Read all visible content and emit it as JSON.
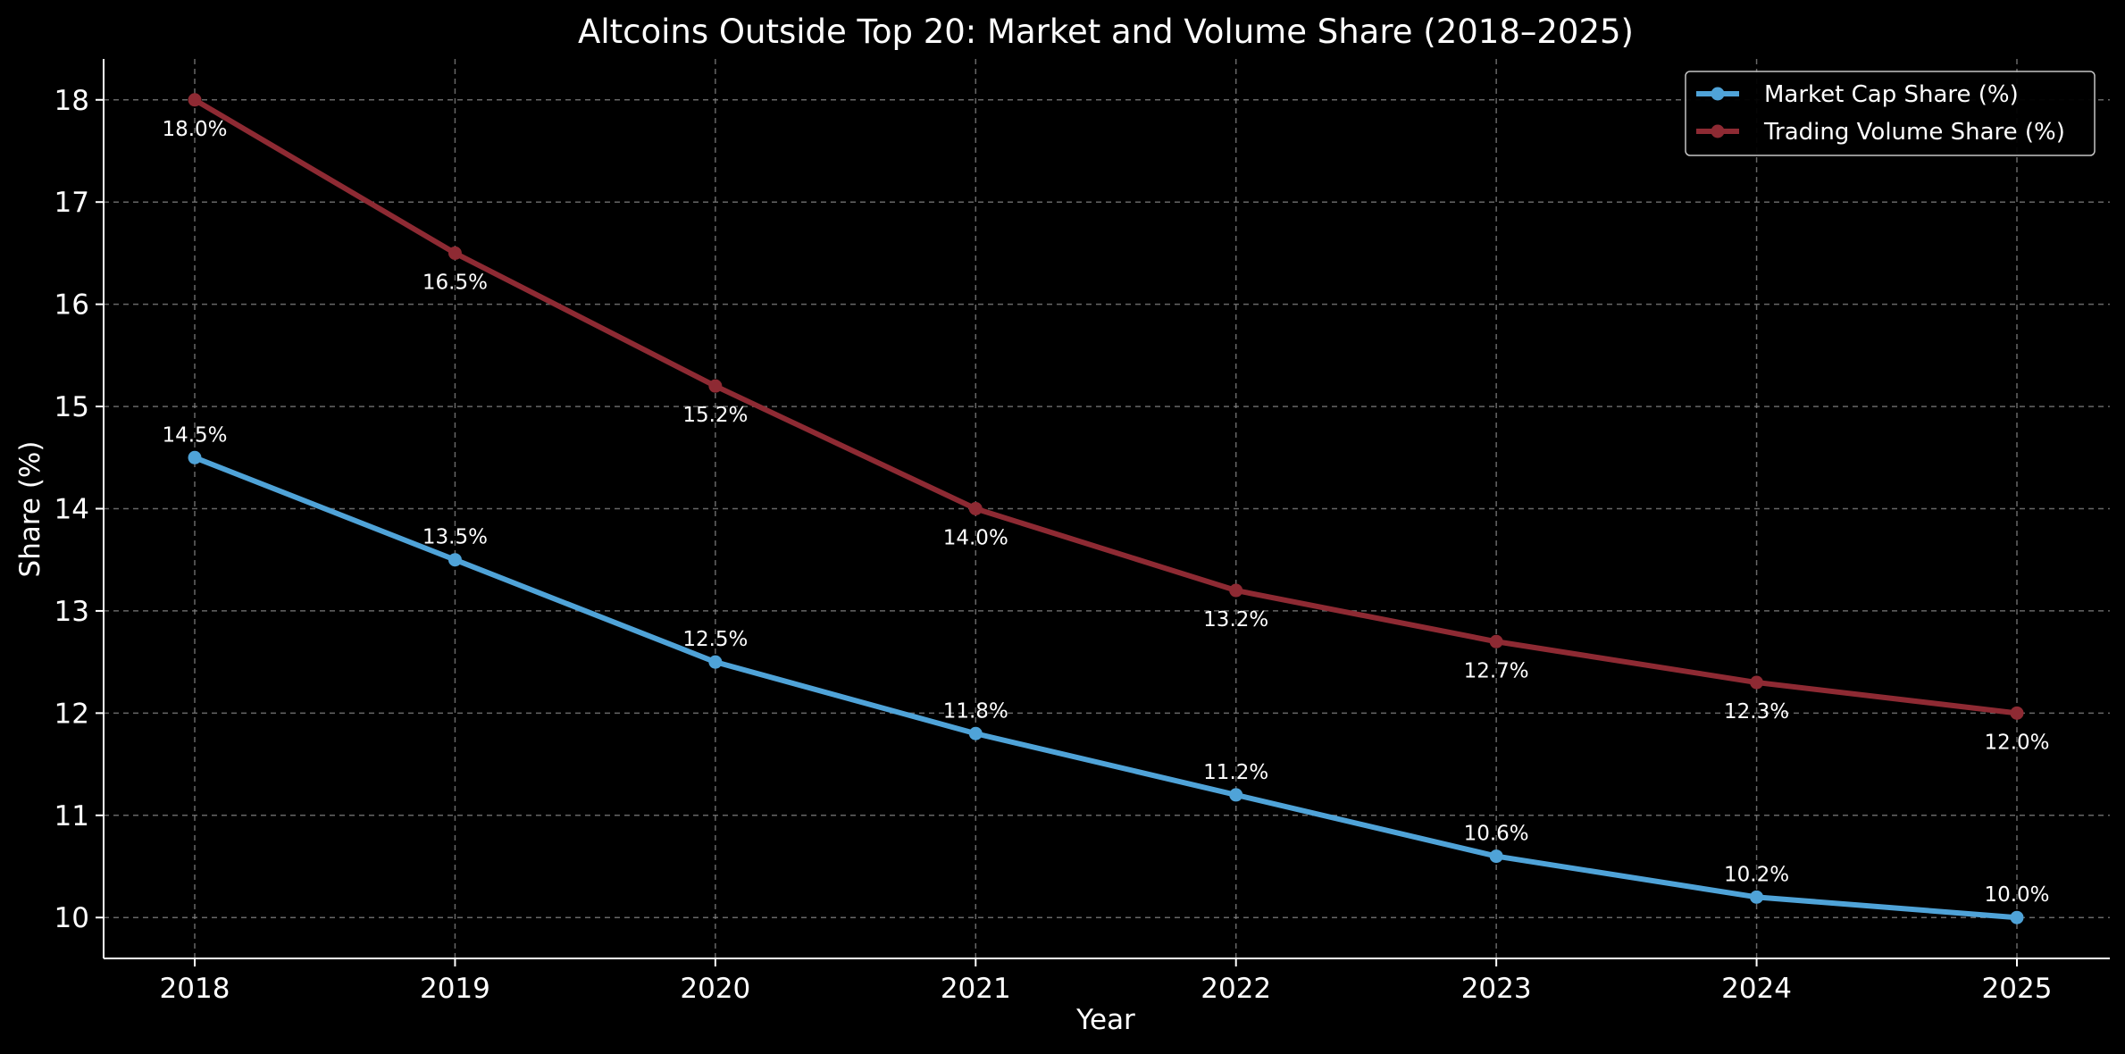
{
  "chart_data": {
    "type": "line",
    "title": "Altcoins Outside Top 20: Market and Volume Share (2018–2025)",
    "xlabel": "Year",
    "ylabel": "Share (%)",
    "categories": [
      "2018",
      "2019",
      "2020",
      "2021",
      "2022",
      "2023",
      "2024",
      "2025"
    ],
    "ylim": [
      9.6,
      18.4
    ],
    "yticks": [
      10,
      11,
      12,
      13,
      14,
      15,
      16,
      17,
      18
    ],
    "grid": true,
    "legend_position": "top-right",
    "series": [
      {
        "name": "Market Cap Share (%)",
        "color": "#4fa3d8",
        "values": [
          14.5,
          13.5,
          12.5,
          11.8,
          11.2,
          10.6,
          10.2,
          10.0
        ],
        "labels": [
          "14.5%",
          "13.5%",
          "12.5%",
          "11.8%",
          "11.2%",
          "10.6%",
          "10.2%",
          "10.0%"
        ],
        "label_position": "above"
      },
      {
        "name": "Trading Volume Share (%)",
        "color": "#8e2a33",
        "values": [
          18.0,
          16.5,
          15.2,
          14.0,
          13.2,
          12.7,
          12.3,
          12.0
        ],
        "labels": [
          "18.0%",
          "16.5%",
          "15.2%",
          "14.0%",
          "13.2%",
          "12.7%",
          "12.3%",
          "12.0%"
        ],
        "label_position": "below"
      }
    ]
  }
}
